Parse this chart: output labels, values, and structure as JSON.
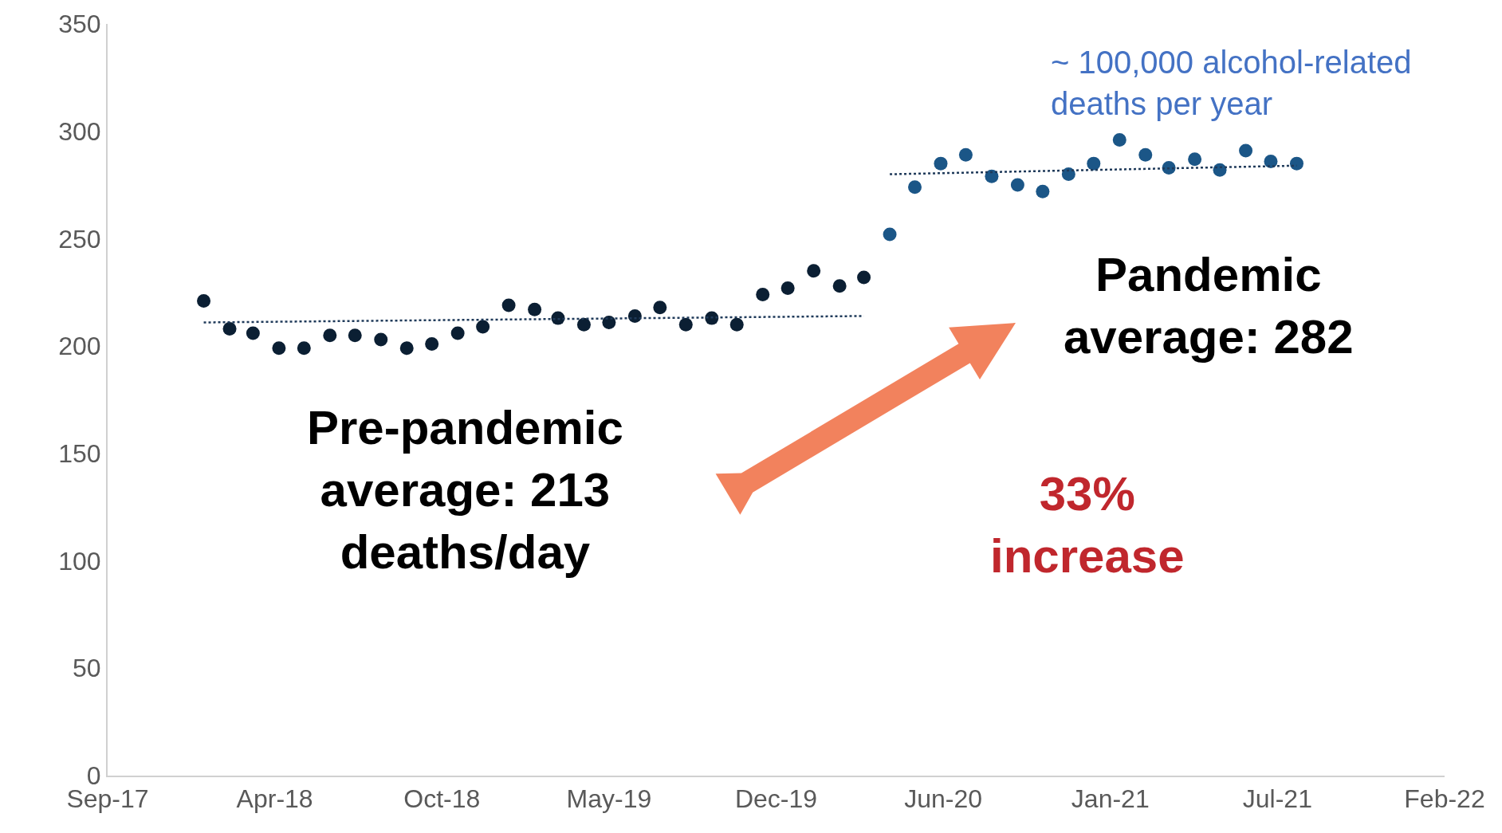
{
  "chart_data": {
    "type": "scatter",
    "marker": "circle",
    "xlim": [
      "2017-09-22",
      "2022-02-08"
    ],
    "xticks": [
      {
        "value": "2017-09-22",
        "label": "Sep-17"
      },
      {
        "value": "2018-04-10",
        "label": "Apr-18"
      },
      {
        "value": "2018-10-27",
        "label": "Oct-18"
      },
      {
        "value": "2019-05-15",
        "label": "May-19"
      },
      {
        "value": "2019-12-01",
        "label": "Dec-19"
      },
      {
        "value": "2020-06-18",
        "label": "Jun-20"
      },
      {
        "value": "2021-01-04",
        "label": "Jan-21"
      },
      {
        "value": "2021-07-23",
        "label": "Jul-21"
      },
      {
        "value": "2022-02-08",
        "label": "Feb-22"
      }
    ],
    "ylim": [
      0,
      350
    ],
    "yticks": [
      0,
      50,
      100,
      150,
      200,
      250,
      300,
      350
    ],
    "series": [
      {
        "color": "#0b1f33",
        "x": [
          "2018-01-15",
          "2018-02-15",
          "2018-03-15",
          "2018-04-15",
          "2018-05-15",
          "2018-06-15",
          "2018-07-15",
          "2018-08-15",
          "2018-09-15",
          "2018-10-15",
          "2018-11-15",
          "2018-12-15",
          "2019-01-15",
          "2019-02-15",
          "2019-03-15",
          "2019-04-15",
          "2019-05-15",
          "2019-06-15",
          "2019-07-15",
          "2019-08-15",
          "2019-09-15",
          "2019-10-15",
          "2019-11-15",
          "2019-12-15",
          "2020-01-15",
          "2020-02-15",
          "2020-03-15"
        ],
        "values": [
          221,
          208,
          206,
          199,
          199,
          205,
          205,
          203,
          199,
          201,
          206,
          209,
          219,
          217,
          213,
          210,
          211,
          214,
          218,
          210,
          213,
          210,
          224,
          227,
          235,
          228,
          232
        ]
      },
      {
        "color": "#1b5687",
        "x": [
          "2020-04-15",
          "2020-05-15",
          "2020-06-15",
          "2020-07-15",
          "2020-08-15",
          "2020-09-15",
          "2020-10-15",
          "2020-11-15",
          "2020-12-15",
          "2021-01-15",
          "2021-02-15",
          "2021-03-15",
          "2021-04-15",
          "2021-05-15",
          "2021-06-15",
          "2021-07-15",
          "2021-08-15"
        ],
        "values": [
          252,
          274,
          285,
          289,
          279,
          275,
          272,
          280,
          285,
          296,
          289,
          283,
          287,
          282,
          291,
          286,
          285
        ]
      },
      {
        "type": "line",
        "line_style": "dotted",
        "marker": "none",
        "color": "#1f3a5a",
        "x": [
          "2018-01-15",
          "2020-03-15"
        ],
        "values": [
          211,
          214
        ]
      },
      {
        "type": "line",
        "line_style": "dotted",
        "marker": "none",
        "color": "#1f3a5a",
        "x": [
          "2020-04-15",
          "2021-08-15"
        ],
        "values": [
          280,
          284
        ]
      }
    ],
    "annotations": [
      "~ 100,000 alcohol-related deaths per year",
      "Pre-pandemic average: 213 deaths/day",
      "Pandemic average: 282",
      "33% increase"
    ]
  }
}
